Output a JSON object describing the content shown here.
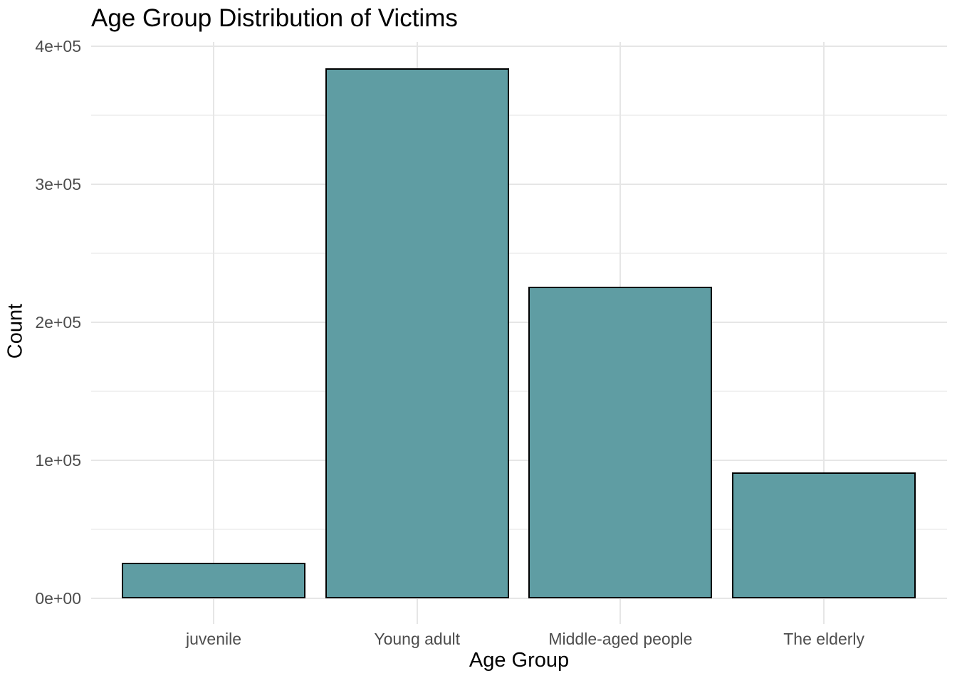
{
  "chart_data": {
    "type": "bar",
    "title": "Age Group Distribution of Victims",
    "xlabel": "Age Group",
    "ylabel": "Count",
    "categories": [
      "juvenile",
      "Young adult",
      "Middle-aged people",
      "The elderly"
    ],
    "values": [
      26000,
      384000,
      226000,
      91000
    ],
    "ylim": [
      0,
      400000
    ],
    "yticks": [
      {
        "value": 0,
        "label": "0e+00"
      },
      {
        "value": 100000,
        "label": "1e+05"
      },
      {
        "value": 200000,
        "label": "2e+05"
      },
      {
        "value": 300000,
        "label": "3e+05"
      },
      {
        "value": 400000,
        "label": "4e+05"
      }
    ],
    "minor_yticks": [
      50000,
      150000,
      250000,
      350000
    ],
    "grid": "horizontal major+minor, vertical major at category centers",
    "legend": false,
    "colors": {
      "bar_fill": "#5F9DA3",
      "bar_stroke": "#000000",
      "grid_major": "#E6E6E6",
      "grid_minor": "#F1F1F1",
      "tick_label": "#4D4D4D",
      "axis_title": "#000000",
      "title": "#000000",
      "background": "#FFFFFF"
    }
  }
}
